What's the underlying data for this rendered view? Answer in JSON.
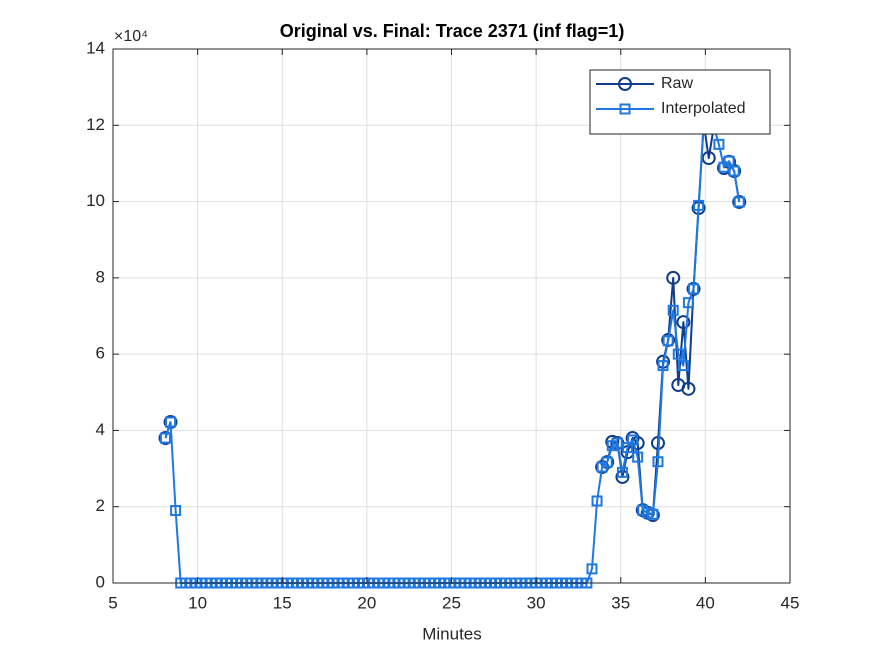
{
  "chart_data": {
    "type": "line",
    "title": "Original vs. Final: Trace 2371 (inf flag=1)",
    "x_label": "Minutes",
    "y_exponent_label": "×10⁴",
    "x": [
      8.1,
      8.4,
      8.7,
      9,
      9.3,
      9.6,
      9.9,
      10.2,
      10.5,
      10.8,
      11.1,
      11.4,
      11.7,
      12,
      12.3,
      12.6,
      12.9,
      13.2,
      13.5,
      13.8,
      14.1,
      14.4,
      14.7,
      15,
      15.3,
      15.6,
      15.9,
      16.2,
      16.5,
      16.8,
      17.1,
      17.4,
      17.7,
      18,
      18.3,
      18.6,
      18.9,
      19.2,
      19.5,
      19.8,
      20.1,
      20.4,
      20.7,
      21,
      21.3,
      21.6,
      21.9,
      22.2,
      22.5,
      22.8,
      23.1,
      23.4,
      23.7,
      24,
      24.3,
      24.6,
      24.9,
      25.2,
      25.5,
      25.8,
      26.1,
      26.4,
      26.7,
      27,
      27.3,
      27.6,
      27.9,
      28.2,
      28.5,
      28.8,
      29.1,
      29.4,
      29.7,
      30,
      30.3,
      30.6,
      30.9,
      31.2,
      31.5,
      31.8,
      32.1,
      32.4,
      32.7,
      33,
      33.3,
      33.6,
      33.9,
      34.2,
      34.5,
      34.8,
      35.1,
      35.4,
      35.7,
      36,
      36.3,
      36.6,
      36.9,
      37.2,
      37.5,
      37.8,
      38.1,
      38.4,
      38.7,
      39,
      39.3,
      39.6,
      39.9,
      40.2,
      40.5,
      40.8,
      41.1,
      41.4,
      41.7,
      42
    ],
    "series": [
      {
        "name": "Raw",
        "color": "#0f3d8c",
        "marker": "circle",
        "values": [
          38000,
          42200,
          null,
          null,
          null,
          null,
          null,
          null,
          null,
          null,
          null,
          null,
          null,
          null,
          null,
          null,
          null,
          null,
          null,
          null,
          null,
          null,
          null,
          null,
          null,
          null,
          null,
          null,
          null,
          null,
          null,
          null,
          null,
          null,
          null,
          null,
          null,
          null,
          null,
          null,
          null,
          null,
          null,
          null,
          null,
          null,
          null,
          null,
          null,
          null,
          null,
          null,
          null,
          null,
          null,
          null,
          null,
          null,
          null,
          null,
          null,
          null,
          null,
          null,
          null,
          null,
          null,
          null,
          null,
          null,
          null,
          null,
          null,
          null,
          null,
          null,
          null,
          null,
          null,
          null,
          null,
          null,
          null,
          null,
          null,
          null,
          30400,
          31700,
          37000,
          36700,
          27800,
          34300,
          38000,
          36700,
          19100,
          18400,
          17800,
          36700,
          58000,
          63700,
          80000,
          51900,
          68400,
          50900,
          77100,
          98300,
          120600,
          111400,
          119600,
          null,
          108800,
          110400,
          108000,
          99900
        ]
      },
      {
        "name": "Interpolated",
        "color": "#1f78e0",
        "marker": "square",
        "values": [
          38000,
          42200,
          19000,
          0,
          0,
          0,
          0,
          0,
          0,
          0,
          0,
          0,
          0,
          0,
          0,
          0,
          0,
          0,
          0,
          0,
          0,
          0,
          0,
          0,
          0,
          0,
          0,
          0,
          0,
          0,
          0,
          0,
          0,
          0,
          0,
          0,
          0,
          0,
          0,
          0,
          0,
          0,
          0,
          0,
          0,
          0,
          0,
          0,
          0,
          0,
          0,
          0,
          0,
          0,
          0,
          0,
          0,
          0,
          0,
          0,
          0,
          0,
          0,
          0,
          0,
          0,
          0,
          0,
          0,
          0,
          0,
          0,
          0,
          0,
          0,
          0,
          0,
          0,
          0,
          0,
          0,
          0,
          0,
          0,
          3700,
          21500,
          30400,
          31700,
          36000,
          36700,
          29000,
          35500,
          37500,
          33000,
          19100,
          18400,
          18000,
          31800,
          57000,
          63500,
          71500,
          60000,
          57000,
          73500,
          77100,
          99000,
          120000,
          119000,
          119600,
          115000,
          109000,
          110600,
          108000,
          99900
        ]
      }
    ],
    "xlim": [
      5,
      45
    ],
    "xticks": [
      5,
      10,
      15,
      20,
      25,
      30,
      35,
      40,
      45
    ],
    "ylim": [
      0,
      140000
    ],
    "yticks": [
      {
        "value": 0,
        "label": "0"
      },
      {
        "value": 20000,
        "label": "2"
      },
      {
        "value": 40000,
        "label": "4"
      },
      {
        "value": 60000,
        "label": "6"
      },
      {
        "value": 80000,
        "label": "8"
      },
      {
        "value": 100000,
        "label": "10"
      },
      {
        "value": 120000,
        "label": "12"
      },
      {
        "value": 140000,
        "label": "14"
      }
    ],
    "grid": true,
    "legend": "upper right"
  }
}
